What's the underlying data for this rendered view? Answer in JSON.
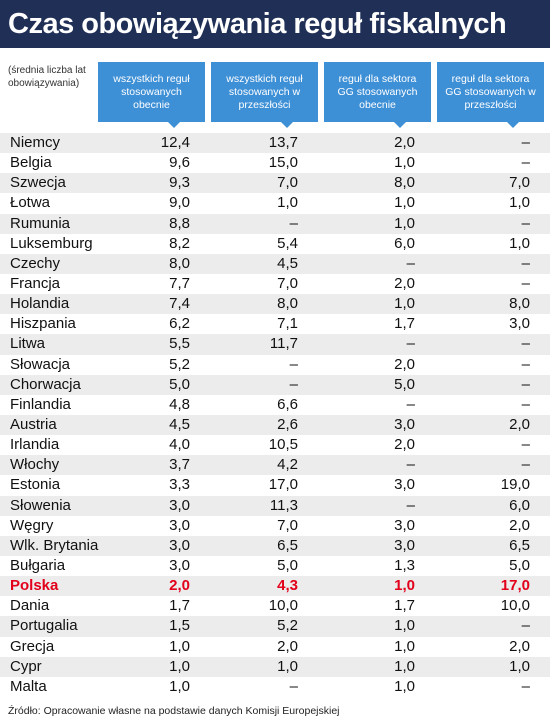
{
  "header": {
    "title": "Czas obowiązywania reguł fiskalnych",
    "note": "(średnia liczba lat obowiązywania)"
  },
  "table": {
    "columns": [
      "wszystkich reguł stosowanych obecnie",
      "wszystkich reguł stosowanych w przeszłości",
      "reguł dla sektora GG stosowanych obecnie",
      "reguł dla sektora GG stosowanych w przeszłości"
    ],
    "rows": [
      [
        "Niemcy",
        "12,4",
        "13,7",
        "2,0",
        "–"
      ],
      [
        "Belgia",
        "9,6",
        "15,0",
        "1,0",
        "–"
      ],
      [
        "Szwecja",
        "9,3",
        "7,0",
        "8,0",
        "7,0"
      ],
      [
        "Łotwa",
        "9,0",
        "1,0",
        "1,0",
        "1,0"
      ],
      [
        "Rumunia",
        "8,8",
        "–",
        "1,0",
        "–"
      ],
      [
        "Luksemburg",
        "8,2",
        "5,4",
        "6,0",
        "1,0"
      ],
      [
        "Czechy",
        "8,0",
        "4,5",
        "–",
        "–"
      ],
      [
        "Francja",
        "7,7",
        "7,0",
        "2,0",
        "–"
      ],
      [
        "Holandia",
        "7,4",
        "8,0",
        "1,0",
        "8,0"
      ],
      [
        "Hiszpania",
        "6,2",
        "7,1",
        "1,7",
        "3,0"
      ],
      [
        "Litwa",
        "5,5",
        "11,7",
        "–",
        "–"
      ],
      [
        "Słowacja",
        "5,2",
        "–",
        "2,0",
        "–"
      ],
      [
        "Chorwacja",
        "5,0",
        "–",
        "5,0",
        "–"
      ],
      [
        "Finlandia",
        "4,8",
        "6,6",
        "–",
        "–"
      ],
      [
        "Austria",
        "4,5",
        "2,6",
        "3,0",
        "2,0"
      ],
      [
        "Irlandia",
        "4,0",
        "10,5",
        "2,0",
        "–"
      ],
      [
        "Włochy",
        "3,7",
        "4,2",
        "–",
        "–"
      ],
      [
        "Estonia",
        "3,3",
        "17,0",
        "3,0",
        "19,0"
      ],
      [
        "Słowenia",
        "3,0",
        "11,3",
        "–",
        "6,0"
      ],
      [
        "Węgry",
        "3,0",
        "7,0",
        "3,0",
        "2,0"
      ],
      [
        "Wlk. Brytania",
        "3,0",
        "6,5",
        "3,0",
        "6,5"
      ],
      [
        "Bułgaria",
        "3,0",
        "5,0",
        "1,3",
        "5,0"
      ],
      [
        "Polska",
        "2,0",
        "4,3",
        "1,0",
        "17,0"
      ],
      [
        "Dania",
        "1,7",
        "10,0",
        "1,7",
        "10,0"
      ],
      [
        "Portugalia",
        "1,5",
        "5,2",
        "1,0",
        "–"
      ],
      [
        "Grecja",
        "1,0",
        "2,0",
        "1,0",
        "2,0"
      ],
      [
        "Cypr",
        "1,0",
        "1,0",
        "1,0",
        "1,0"
      ],
      [
        "Malta",
        "1,0",
        "–",
        "1,0",
        "–"
      ]
    ]
  },
  "footer": {
    "source": "Źródło: Opracowanie własne na podstawie danych Komisji Europejskiej"
  }
}
